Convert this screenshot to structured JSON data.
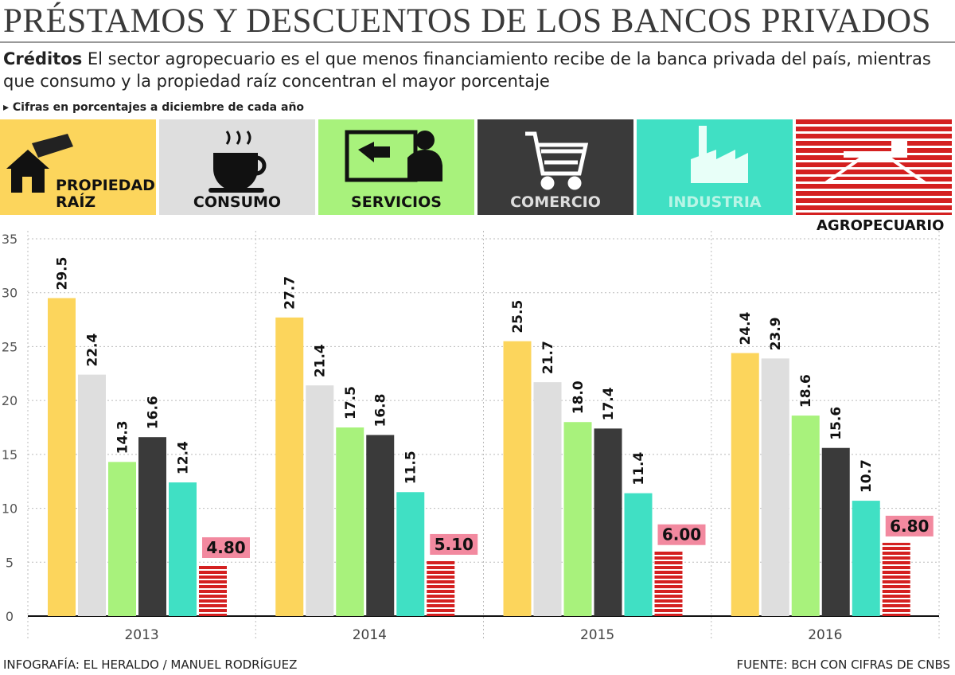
{
  "header": {
    "title": "PRÉSTAMOS Y DESCUENTOS DE LOS BANCOS PRIVADOS",
    "lead": "Créditos",
    "subtitle": "El sector agropecuario es el que menos financiamiento recibe de la banca privada del país, mientras que consumo y la propiedad raíz concentran el mayor porcentaje",
    "note": "Cifras en porcentajes a diciembre de cada año"
  },
  "chart_data": {
    "type": "bar",
    "categories": [
      "2013",
      "2014",
      "2015",
      "2016"
    ],
    "series": [
      {
        "name": "PROPIEDAD RAÍZ",
        "color": "#fcd55c",
        "values": [
          29.5,
          27.7,
          25.5,
          24.4
        ],
        "value_labels": [
          "29.5",
          "27.7",
          "25.5",
          "24.4"
        ]
      },
      {
        "name": "CONSUMO",
        "color": "#dedede",
        "values": [
          22.4,
          21.4,
          21.7,
          23.9
        ],
        "value_labels": [
          "22.4",
          "21.4",
          "21.7",
          "23.9"
        ]
      },
      {
        "name": "SERVICIOS",
        "color": "#a8f27c",
        "values": [
          14.3,
          17.5,
          18,
          18.6
        ],
        "value_labels": [
          "14.3",
          "17.5",
          "18.0",
          "18.6"
        ]
      },
      {
        "name": "COMERCIO",
        "color": "#3a3a3a",
        "values": [
          16.6,
          16.8,
          17.4,
          15.6
        ],
        "value_labels": [
          "16.6",
          "16.8",
          "17.4",
          "15.6"
        ]
      },
      {
        "name": "INDUSTRIA",
        "color": "#40e0c4",
        "values": [
          12.4,
          11.5,
          11.4,
          10.7
        ],
        "value_labels": [
          "12.4",
          "11.5",
          "11.4",
          "10.7"
        ]
      },
      {
        "name": "AGROPECUARIO",
        "color": "#d42020",
        "values": [
          4.8,
          5.1,
          6,
          6.8
        ],
        "value_labels": [
          "4.80",
          "5.10",
          "6.00",
          "6.80"
        ]
      }
    ],
    "ylim": [
      0,
      35
    ],
    "yticks": [
      0,
      5,
      10,
      15,
      20,
      25,
      30,
      35
    ],
    "grid": true
  },
  "footer": {
    "credit": "INFOGRAFÍA: EL HERALDO / MANUEL RODRÍGUEZ",
    "source": "FUENTE: BCH CON CIFRAS DE CNBS"
  }
}
